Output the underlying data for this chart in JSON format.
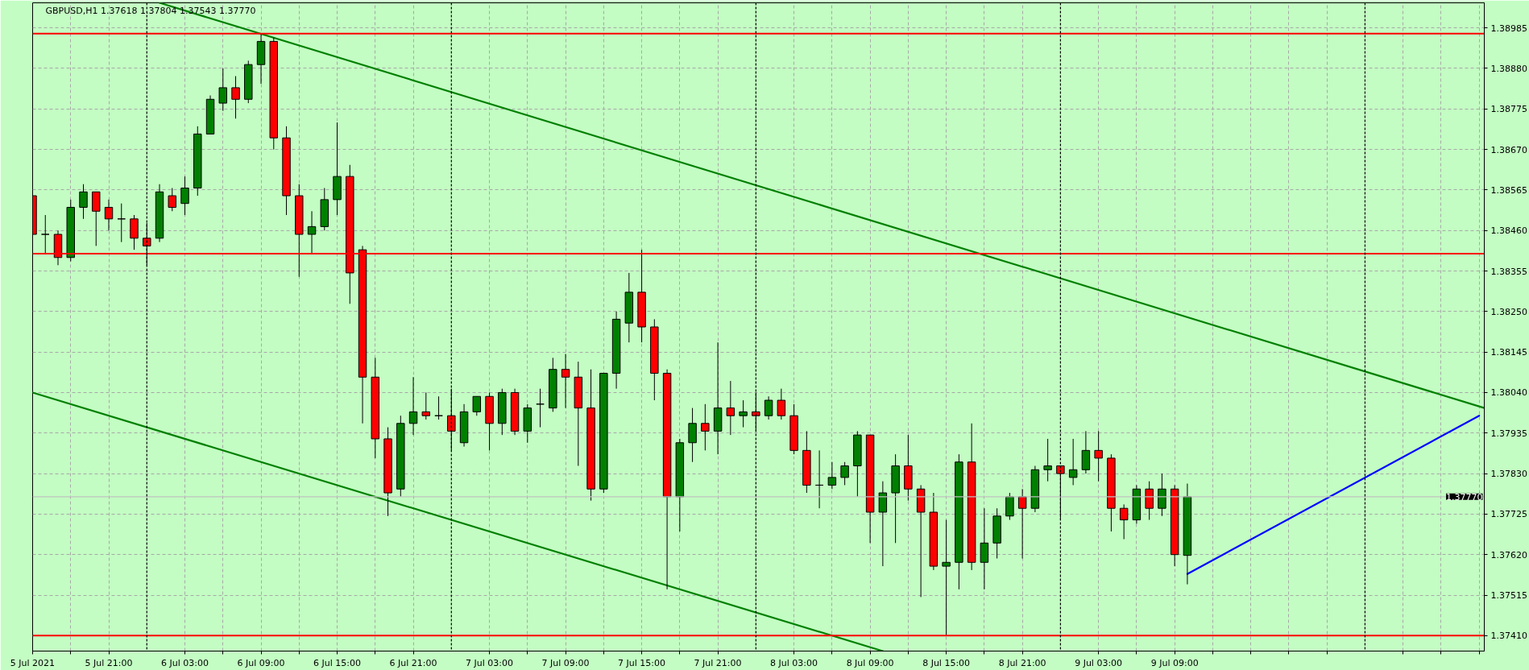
{
  "chart_data": {
    "type": "candlestick",
    "title": "GBPUSD,H1 1.37618 1.37804 1.37543 1.37770",
    "x": [
      "2021-07-05T15:00",
      "2021-07-05T16:00",
      "2021-07-05T17:00",
      "2021-07-05T18:00",
      "2021-07-05T19:00",
      "2021-07-05T20:00",
      "2021-07-05T21:00",
      "2021-07-05T22:00",
      "2021-07-05T23:00",
      "2021-07-06T00:00",
      "2021-07-06T01:00",
      "2021-07-06T02:00",
      "2021-07-06T03:00",
      "2021-07-06T04:00",
      "2021-07-06T05:00",
      "2021-07-06T06:00",
      "2021-07-06T07:00",
      "2021-07-06T08:00",
      "2021-07-06T09:00",
      "2021-07-06T10:00",
      "2021-07-06T11:00",
      "2021-07-06T12:00",
      "2021-07-06T13:00",
      "2021-07-06T14:00",
      "2021-07-06T15:00",
      "2021-07-06T16:00",
      "2021-07-06T17:00",
      "2021-07-06T18:00",
      "2021-07-06T19:00",
      "2021-07-06T20:00",
      "2021-07-06T21:00",
      "2021-07-06T22:00",
      "2021-07-06T23:00",
      "2021-07-07T00:00",
      "2021-07-07T01:00",
      "2021-07-07T02:00",
      "2021-07-07T03:00",
      "2021-07-07T04:00",
      "2021-07-07T05:00",
      "2021-07-07T06:00",
      "2021-07-07T07:00",
      "2021-07-07T08:00",
      "2021-07-07T09:00",
      "2021-07-07T10:00",
      "2021-07-07T11:00",
      "2021-07-07T12:00",
      "2021-07-07T13:00",
      "2021-07-07T14:00",
      "2021-07-07T15:00",
      "2021-07-07T16:00",
      "2021-07-07T17:00",
      "2021-07-07T18:00",
      "2021-07-07T19:00",
      "2021-07-07T20:00",
      "2021-07-07T21:00",
      "2021-07-07T22:00",
      "2021-07-07T23:00",
      "2021-07-08T00:00",
      "2021-07-08T01:00",
      "2021-07-08T02:00",
      "2021-07-08T03:00",
      "2021-07-08T04:00",
      "2021-07-08T05:00",
      "2021-07-08T06:00",
      "2021-07-08T07:00",
      "2021-07-08T08:00",
      "2021-07-08T09:00",
      "2021-07-08T10:00",
      "2021-07-08T11:00",
      "2021-07-08T12:00",
      "2021-07-08T13:00",
      "2021-07-08T14:00",
      "2021-07-08T15:00",
      "2021-07-08T16:00",
      "2021-07-08T17:00",
      "2021-07-08T18:00",
      "2021-07-08T19:00",
      "2021-07-08T20:00",
      "2021-07-08T21:00",
      "2021-07-08T22:00",
      "2021-07-08T23:00",
      "2021-07-09T00:00",
      "2021-07-09T01:00",
      "2021-07-09T02:00",
      "2021-07-09T03:00",
      "2021-07-09T04:00",
      "2021-07-09T05:00",
      "2021-07-09T06:00",
      "2021-07-09T07:00",
      "2021-07-09T08:00",
      "2021-07-09T09:00",
      "2021-07-09T10:00"
    ],
    "ohlc": [
      [
        1.3855,
        1.3856,
        1.3843,
        1.3845
      ],
      [
        1.3845,
        1.385,
        1.384,
        1.3845
      ],
      [
        1.3845,
        1.3846,
        1.3837,
        1.3839
      ],
      [
        1.3839,
        1.3854,
        1.3838,
        1.3852
      ],
      [
        1.3852,
        1.3858,
        1.3849,
        1.3856
      ],
      [
        1.3856,
        1.3856,
        1.3842,
        1.3851
      ],
      [
        1.3852,
        1.3854,
        1.3846,
        1.3849
      ],
      [
        1.3849,
        1.3853,
        1.3843,
        1.3849
      ],
      [
        1.3849,
        1.385,
        1.3841,
        1.3844
      ],
      [
        1.3844,
        1.3848,
        1.3837,
        1.3842
      ],
      [
        1.3844,
        1.3858,
        1.3843,
        1.3856
      ],
      [
        1.3855,
        1.3857,
        1.3851,
        1.3852
      ],
      [
        1.3853,
        1.386,
        1.385,
        1.3857
      ],
      [
        1.3857,
        1.3873,
        1.3855,
        1.3871
      ],
      [
        1.3871,
        1.3881,
        1.3871,
        1.388
      ],
      [
        1.3879,
        1.3888,
        1.3877,
        1.3883
      ],
      [
        1.3883,
        1.3886,
        1.3875,
        1.388
      ],
      [
        1.388,
        1.389,
        1.3879,
        1.3889
      ],
      [
        1.3889,
        1.3897,
        1.3884,
        1.3895
      ],
      [
        1.3895,
        1.3896,
        1.3867,
        1.387
      ],
      [
        1.387,
        1.3873,
        1.385,
        1.3855
      ],
      [
        1.3855,
        1.3858,
        1.3834,
        1.3845
      ],
      [
        1.3845,
        1.3851,
        1.384,
        1.3847
      ],
      [
        1.3847,
        1.3857,
        1.3846,
        1.3854
      ],
      [
        1.3854,
        1.3874,
        1.385,
        1.386
      ],
      [
        1.386,
        1.3863,
        1.3827,
        1.3835
      ],
      [
        1.3841,
        1.3842,
        1.3796,
        1.3808
      ],
      [
        1.3808,
        1.3813,
        1.3787,
        1.3792
      ],
      [
        1.3792,
        1.3795,
        1.3772,
        1.3778
      ],
      [
        1.3779,
        1.3798,
        1.3777,
        1.3796
      ],
      [
        1.3796,
        1.3808,
        1.3793,
        1.3799
      ],
      [
        1.3799,
        1.3804,
        1.3797,
        1.3798
      ],
      [
        1.3798,
        1.3803,
        1.3797,
        1.3798
      ],
      [
        1.3798,
        1.3805,
        1.3789,
        1.3794
      ],
      [
        1.3791,
        1.3801,
        1.379,
        1.3799
      ],
      [
        1.3799,
        1.3803,
        1.3798,
        1.3803
      ],
      [
        1.3803,
        1.3804,
        1.3789,
        1.3796
      ],
      [
        1.3796,
        1.3805,
        1.3793,
        1.3804
      ],
      [
        1.3804,
        1.3805,
        1.3793,
        1.3794
      ],
      [
        1.3794,
        1.3801,
        1.3791,
        1.38
      ],
      [
        1.3801,
        1.3805,
        1.3795,
        1.3801
      ],
      [
        1.38,
        1.3813,
        1.3799,
        1.381
      ],
      [
        1.381,
        1.3814,
        1.38,
        1.3808
      ],
      [
        1.3808,
        1.3812,
        1.3785,
        1.38
      ],
      [
        1.38,
        1.381,
        1.3776,
        1.3779
      ],
      [
        1.3779,
        1.3809,
        1.3778,
        1.3809
      ],
      [
        1.3809,
        1.3825,
        1.3805,
        1.3823
      ],
      [
        1.3822,
        1.3835,
        1.3817,
        1.383
      ],
      [
        1.383,
        1.3841,
        1.3817,
        1.3821
      ],
      [
        1.3821,
        1.3823,
        1.3802,
        1.3809
      ],
      [
        1.3809,
        1.381,
        1.3753,
        1.3777
      ],
      [
        1.3777,
        1.3792,
        1.3768,
        1.3791
      ],
      [
        1.3791,
        1.38,
        1.3786,
        1.3796
      ],
      [
        1.3796,
        1.3801,
        1.3789,
        1.3794
      ],
      [
        1.3794,
        1.3817,
        1.3788,
        1.38
      ],
      [
        1.38,
        1.3807,
        1.3793,
        1.3798
      ],
      [
        1.3798,
        1.3802,
        1.3795,
        1.3799
      ],
      [
        1.3799,
        1.3804,
        1.3794,
        1.3798
      ],
      [
        1.3798,
        1.3803,
        1.3797,
        1.3802
      ],
      [
        1.3802,
        1.3805,
        1.3797,
        1.3798
      ],
      [
        1.3798,
        1.3801,
        1.3788,
        1.3789
      ],
      [
        1.3789,
        1.3794,
        1.3778,
        1.378
      ],
      [
        1.378,
        1.3789,
        1.3774,
        1.378
      ],
      [
        1.378,
        1.3786,
        1.3779,
        1.3782
      ],
      [
        1.3782,
        1.3786,
        1.378,
        1.3785
      ],
      [
        1.3785,
        1.3794,
        1.3777,
        1.3793
      ],
      [
        1.3793,
        1.3793,
        1.3765,
        1.3773
      ],
      [
        1.3773,
        1.3781,
        1.3759,
        1.3778
      ],
      [
        1.3778,
        1.3788,
        1.3765,
        1.3785
      ],
      [
        1.3785,
        1.3793,
        1.3776,
        1.3779
      ],
      [
        1.3779,
        1.378,
        1.3751,
        1.3773
      ],
      [
        1.3773,
        1.3778,
        1.3758,
        1.3759
      ],
      [
        1.3759,
        1.3771,
        1.3741,
        1.376
      ],
      [
        1.376,
        1.3788,
        1.3753,
        1.3786
      ],
      [
        1.3786,
        1.3796,
        1.3758,
        1.376
      ],
      [
        1.376,
        1.3774,
        1.3753,
        1.3765
      ],
      [
        1.3765,
        1.3774,
        1.3761,
        1.3772
      ],
      [
        1.3772,
        1.3778,
        1.3771,
        1.3777
      ],
      [
        1.3777,
        1.3779,
        1.3761,
        1.3774
      ],
      [
        1.3774,
        1.3785,
        1.3773,
        1.3784
      ],
      [
        1.3784,
        1.3792,
        1.3781,
        1.3785
      ],
      [
        1.3785,
        1.3785,
        1.3771,
        1.3783
      ],
      [
        1.3782,
        1.3792,
        1.378,
        1.3784
      ],
      [
        1.3784,
        1.3794,
        1.3783,
        1.3789
      ],
      [
        1.3789,
        1.3794,
        1.3781,
        1.3787
      ],
      [
        1.3787,
        1.3788,
        1.3768,
        1.3774
      ],
      [
        1.3774,
        1.3775,
        1.3766,
        1.3771
      ],
      [
        1.3771,
        1.378,
        1.377,
        1.3779
      ],
      [
        1.3779,
        1.3781,
        1.3771,
        1.3774
      ],
      [
        1.3774,
        1.3783,
        1.3772,
        1.3779
      ],
      [
        1.3779,
        1.378,
        1.3759,
        1.3762
      ],
      [
        1.37618,
        1.37804,
        1.37543,
        1.3777
      ]
    ],
    "colors": [
      "#ff0000",
      "#000000",
      "#ff0000",
      "#008000",
      "#008000",
      "#ff0000",
      "#ff0000",
      "#000000",
      "#ff0000",
      "#ff0000",
      "#008000",
      "#ff0000",
      "#008000",
      "#008000",
      "#008000",
      "#008000",
      "#ff0000",
      "#008000",
      "#008000",
      "#ff0000",
      "#ff0000",
      "#ff0000",
      "#008000",
      "#008000",
      "#008000",
      "#ff0000",
      "#ff0000",
      "#ff0000",
      "#ff0000",
      "#008000",
      "#008000",
      "#ff0000",
      "#000000",
      "#ff0000",
      "#008000",
      "#008000",
      "#ff0000",
      "#008000",
      "#ff0000",
      "#008000",
      "#000000",
      "#008000",
      "#ff0000",
      "#ff0000",
      "#ff0000",
      "#008000",
      "#008000",
      "#008000",
      "#ff0000",
      "#ff0000",
      "#ff0000",
      "#008000",
      "#008000",
      "#ff0000",
      "#008000",
      "#ff0000",
      "#008000",
      "#ff0000",
      "#008000",
      "#ff0000",
      "#ff0000",
      "#ff0000",
      "#000000",
      "#008000",
      "#008000",
      "#008000",
      "#ff0000",
      "#008000",
      "#008000",
      "#ff0000",
      "#ff0000",
      "#ff0000",
      "#008000",
      "#008000",
      "#ff0000",
      "#008000",
      "#008000",
      "#008000",
      "#ff0000",
      "#008000",
      "#008000",
      "#ff0000",
      "#008000",
      "#008000",
      "#ff0000",
      "#ff0000",
      "#ff0000",
      "#008000",
      "#ff0000",
      "#008000",
      "#ff0000",
      "#008000"
    ],
    "series": [
      {
        "type": "line",
        "color": "#008000",
        "x": [
          "2021-07-06T01:00",
          "2021-07-10T09:24"
        ],
        "values": [
          1.3905,
          1.38
        ]
      },
      {
        "type": "line",
        "color": "#008000",
        "x": [
          "2021-07-05T15:00",
          "2021-07-08T10:00"
        ],
        "values": [
          1.3804,
          1.3737
        ]
      },
      {
        "type": "line",
        "color": "#0000ff",
        "x": [
          "2021-07-09T10:00",
          "2021-07-10T09:00"
        ],
        "values": [
          1.3757,
          1.3798
        ]
      }
    ],
    "xlim": [
      "2021-07-05T15:00",
      "2021-07-10T09:24"
    ],
    "xticks": [
      {
        "value": "2021-07-05T15:00",
        "label": "5 Jul 2021"
      },
      {
        "value": "2021-07-05T18:00",
        "label": null
      },
      {
        "value": "2021-07-05T21:00",
        "label": "5 Jul 21:00"
      },
      {
        "value": "2021-07-06T03:00",
        "label": "6 Jul 03:00"
      },
      {
        "value": "2021-07-06T06:00",
        "label": null
      },
      {
        "value": "2021-07-06T09:00",
        "label": "6 Jul 09:00"
      },
      {
        "value": "2021-07-06T12:00",
        "label": null
      },
      {
        "value": "2021-07-06T15:00",
        "label": "6 Jul 15:00"
      },
      {
        "value": "2021-07-06T18:00",
        "label": null
      },
      {
        "value": "2021-07-06T21:00",
        "label": "6 Jul 21:00"
      },
      {
        "value": "2021-07-07T03:00",
        "label": "7 Jul 03:00"
      },
      {
        "value": "2021-07-07T06:00",
        "label": null
      },
      {
        "value": "2021-07-07T09:00",
        "label": "7 Jul 09:00"
      },
      {
        "value": "2021-07-07T12:00",
        "label": null
      },
      {
        "value": "2021-07-07T15:00",
        "label": "7 Jul 15:00"
      },
      {
        "value": "2021-07-07T18:00",
        "label": null
      },
      {
        "value": "2021-07-07T21:00",
        "label": "7 Jul 21:00"
      },
      {
        "value": "2021-07-08T03:00",
        "label": "8 Jul 03:00"
      },
      {
        "value": "2021-07-08T06:00",
        "label": null
      },
      {
        "value": "2021-07-08T09:00",
        "label": "8 Jul 09:00"
      },
      {
        "value": "2021-07-08T12:00",
        "label": null
      },
      {
        "value": "2021-07-08T15:00",
        "label": "8 Jul 15:00"
      },
      {
        "value": "2021-07-08T18:00",
        "label": null
      },
      {
        "value": "2021-07-08T21:00",
        "label": "8 Jul 21:00"
      },
      {
        "value": "2021-07-09T03:00",
        "label": "9 Jul 03:00"
      },
      {
        "value": "2021-07-09T06:00",
        "label": null
      },
      {
        "value": "2021-07-09T09:00",
        "label": "9 Jul 09:00"
      },
      {
        "value": "2021-07-09T12:00",
        "label": null
      },
      {
        "value": "2021-07-09T15:00",
        "label": null
      },
      {
        "value": "2021-07-09T18:00",
        "label": null
      },
      {
        "value": "2021-07-09T21:00",
        "label": null
      },
      {
        "value": "2021-07-10T03:00",
        "label": null
      },
      {
        "value": "2021-07-10T06:00",
        "label": null
      },
      {
        "value": "2021-07-10T09:00",
        "label": null
      }
    ],
    "ylim": [
      1.3737,
      1.3905
    ],
    "yticks": [
      1.38985,
      {
        "value": 1.3888,
        "label": "1.38880"
      },
      1.38775,
      {
        "value": 1.3867,
        "label": "1.38670"
      },
      1.38565,
      {
        "value": 1.3846,
        "label": "1.38460"
      },
      1.38355,
      {
        "value": 1.3825,
        "label": "1.38250"
      },
      1.38145,
      {
        "value": 1.3804,
        "label": "1.38040"
      },
      1.37935,
      {
        "value": 1.3783,
        "label": "1.37830"
      },
      1.37725,
      {
        "value": 1.3762,
        "label": "1.37620"
      },
      1.37515,
      {
        "value": 1.3741,
        "label": "1.37410"
      }
    ],
    "grid": true,
    "ref_lines": [
      {
        "axis": "y",
        "value": 1.3897,
        "color": "#ff0000"
      },
      {
        "axis": "y",
        "value": 1.384,
        "color": "#ff0000"
      },
      {
        "axis": "y",
        "value": 1.3741,
        "color": "#ff0000"
      },
      {
        "axis": "y",
        "value": 1.3777,
        "label": "1.37770",
        "color": "#c0c0c0"
      },
      {
        "axis": "x",
        "value": "2021-07-06T00:00",
        "color": "#000000",
        "line_style": "dotted"
      },
      {
        "axis": "x",
        "value": "2021-07-07T00:00",
        "color": "#000000",
        "line_style": "dotted"
      },
      {
        "axis": "x",
        "value": "2021-07-08T00:00",
        "color": "#000000",
        "line_style": "dotted"
      },
      {
        "axis": "x",
        "value": "2021-07-09T00:00",
        "color": "#000000",
        "line_style": "dotted"
      },
      {
        "axis": "x",
        "value": "2021-07-10T00:00",
        "color": "#000000",
        "line_style": "dotted"
      }
    ]
  }
}
